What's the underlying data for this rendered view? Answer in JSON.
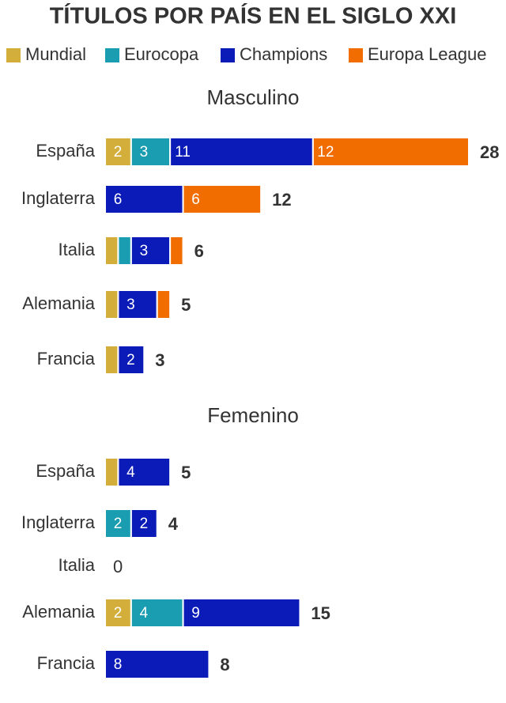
{
  "chart_data": {
    "type": "bar",
    "orientation": "horizontal",
    "stacked": true,
    "title": "TÍTULOS POR PAÍS EN EL SIGLO XXI",
    "legend": [
      {
        "name": "Mundial",
        "color": "#d4ae3a"
      },
      {
        "name": "Eurocopa",
        "color": "#1a9db0"
      },
      {
        "name": "Champions",
        "color": "#0a1bb8"
      },
      {
        "name": "Europa League",
        "color": "#f26d00"
      }
    ],
    "panels": [
      {
        "subtitle": "Masculino",
        "categories": [
          "España",
          "Inglaterra",
          "Italia",
          "Alemania",
          "Francia"
        ],
        "series": [
          {
            "name": "Mundial",
            "color": "#d4ae3a",
            "values": [
              2,
              0,
              1,
              1,
              1
            ]
          },
          {
            "name": "Eurocopa",
            "color": "#1a9db0",
            "values": [
              3,
              0,
              1,
              0,
              0
            ]
          },
          {
            "name": "Champions",
            "color": "#0a1bb8",
            "values": [
              11,
              6,
              3,
              3,
              2
            ]
          },
          {
            "name": "Europa League",
            "color": "#f26d00",
            "values": [
              12,
              6,
              1,
              1,
              0
            ]
          }
        ],
        "totals": [
          28,
          12,
          6,
          5,
          3
        ]
      },
      {
        "subtitle": "Femenino",
        "categories": [
          "España",
          "Inglaterra",
          "Italia",
          "Alemania",
          "Francia"
        ],
        "series": [
          {
            "name": "Mundial",
            "color": "#d4ae3a",
            "values": [
              1,
              0,
              0,
              2,
              0
            ]
          },
          {
            "name": "Eurocopa",
            "color": "#1a9db0",
            "values": [
              0,
              2,
              0,
              4,
              0
            ]
          },
          {
            "name": "Champions",
            "color": "#0a1bb8",
            "values": [
              4,
              2,
              0,
              9,
              8
            ]
          }
        ],
        "totals": [
          5,
          4,
          0,
          15,
          8
        ]
      }
    ]
  }
}
